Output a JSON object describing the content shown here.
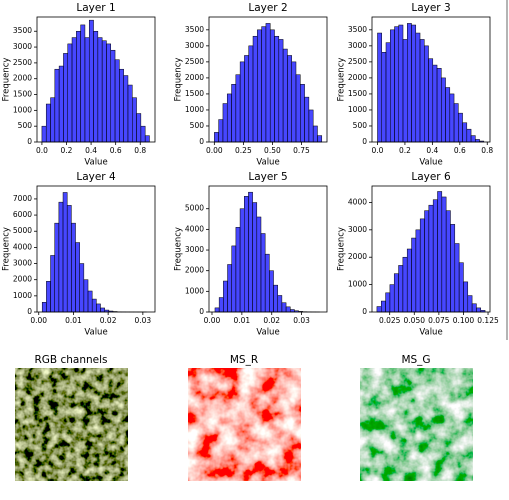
{
  "chart_data": [
    {
      "type": "histogram",
      "title": "Layer 1",
      "xlabel": "Value",
      "ylabel": "Frequency",
      "color": "#0000ff",
      "bins": [
        0,
        0.035,
        0.07,
        0.105,
        0.14,
        0.175,
        0.21,
        0.245,
        0.28,
        0.315,
        0.35,
        0.385,
        0.42,
        0.455,
        0.49,
        0.525,
        0.56,
        0.595,
        0.63,
        0.665,
        0.7,
        0.735,
        0.77,
        0.805,
        0.84,
        0.875
      ],
      "counts": [
        500,
        1200,
        1400,
        2300,
        2400,
        2800,
        3100,
        3300,
        3500,
        3700,
        3300,
        3850,
        3500,
        3300,
        3200,
        3100,
        2900,
        2600,
        2300,
        2100,
        1800,
        1400,
        900,
        500,
        200
      ],
      "xlim": [
        -0.04,
        0.92
      ],
      "ylim": [
        0,
        3950
      ],
      "xticks": [
        {
          "value": 0,
          "label": "0.0"
        },
        0.2,
        0.4,
        0.6,
        0.8
      ],
      "yticks": [
        0,
        500,
        1000,
        1500,
        2000,
        2500,
        3000,
        3500
      ]
    },
    {
      "type": "histogram",
      "title": "Layer 2",
      "xlabel": "Value",
      "ylabel": "Frequency",
      "color": "#0000ff",
      "bins": [
        0,
        0.037,
        0.074,
        0.111,
        0.148,
        0.185,
        0.222,
        0.259,
        0.296,
        0.333,
        0.37,
        0.407,
        0.444,
        0.481,
        0.518,
        0.555,
        0.592,
        0.629,
        0.666,
        0.703,
        0.74,
        0.777,
        0.814,
        0.851,
        0.888,
        0.925
      ],
      "counts": [
        300,
        700,
        1200,
        1500,
        1800,
        2100,
        2500,
        2700,
        3000,
        3300,
        3500,
        3600,
        3700,
        3500,
        3300,
        3200,
        2900,
        2700,
        2500,
        2100,
        1800,
        1400,
        1000,
        500,
        200
      ],
      "xlim": [
        -0.046,
        0.97
      ],
      "ylim": [
        0,
        3900
      ],
      "xticks": [
        {
          "value": 0,
          "label": "0.00"
        },
        0.25,
        {
          "value": 0.5,
          "label": "0.50"
        },
        0.75
      ],
      "yticks": [
        0,
        500,
        1000,
        1500,
        2000,
        2500,
        3000,
        3500
      ]
    },
    {
      "type": "histogram",
      "title": "Layer 3",
      "xlabel": "Value",
      "ylabel": "Frequency",
      "color": "#0000ff",
      "bins": [
        0,
        0.031,
        0.062,
        0.093,
        0.124,
        0.155,
        0.186,
        0.217,
        0.248,
        0.279,
        0.31,
        0.341,
        0.372,
        0.403,
        0.434,
        0.465,
        0.496,
        0.527,
        0.558,
        0.589,
        0.62,
        0.651,
        0.682,
        0.713,
        0.744,
        0.775
      ],
      "counts": [
        3400,
        2800,
        3100,
        3500,
        3600,
        3650,
        3200,
        3700,
        3650,
        3400,
        3200,
        3000,
        2600,
        2400,
        2300,
        2000,
        1700,
        1500,
        1200,
        900,
        600,
        400,
        200,
        80,
        30
      ],
      "xlim": [
        -0.04,
        0.82
      ],
      "ylim": [
        0,
        3900
      ],
      "xticks": [
        {
          "value": 0,
          "label": "0.0"
        },
        0.2,
        0.4,
        0.6,
        0.8
      ],
      "yticks": [
        0,
        500,
        1000,
        1500,
        2000,
        2500,
        3000,
        3500
      ]
    },
    {
      "type": "histogram",
      "title": "Layer 4",
      "xlabel": "Value",
      "ylabel": "Frequency",
      "color": "#0000ff",
      "bins": [
        0.001,
        0.0022,
        0.0034,
        0.0046,
        0.0058,
        0.007,
        0.0082,
        0.0094,
        0.0106,
        0.0118,
        0.013,
        0.0142,
        0.0154,
        0.0166,
        0.0178,
        0.019,
        0.0202,
        0.0214,
        0.0226,
        0.0238,
        0.025,
        0.0262,
        0.0274,
        0.0286,
        0.0298,
        0.031
      ],
      "counts": [
        600,
        1900,
        3500,
        5500,
        6800,
        7400,
        6600,
        5500,
        4300,
        3000,
        2000,
        1300,
        800,
        500,
        250,
        120,
        60,
        30,
        15,
        8,
        4,
        2,
        1,
        1,
        1
      ],
      "xlim": [
        -0.0005,
        0.0335
      ],
      "ylim": [
        0,
        7800
      ],
      "xticks": [
        {
          "value": 0,
          "label": "0.00"
        },
        0.01,
        0.02,
        0.03
      ],
      "yticks": [
        0,
        1000,
        2000,
        3000,
        4000,
        5000,
        6000,
        7000
      ]
    },
    {
      "type": "histogram",
      "title": "Layer 5",
      "xlabel": "Value",
      "ylabel": "Frequency",
      "color": "#0000ff",
      "bins": [
        0.001,
        0.0024,
        0.0038,
        0.0052,
        0.0066,
        0.008,
        0.0094,
        0.0108,
        0.0122,
        0.0136,
        0.015,
        0.0164,
        0.0178,
        0.0192,
        0.0206,
        0.022,
        0.0234,
        0.0248,
        0.0262,
        0.0276,
        0.029,
        0.0304,
        0.0318,
        0.0332,
        0.0346,
        0.036
      ],
      "counts": [
        200,
        700,
        1500,
        2300,
        3200,
        4100,
        5000,
        5600,
        5800,
        5300,
        4600,
        3800,
        2800,
        2000,
        1300,
        800,
        450,
        250,
        120,
        60,
        30,
        15,
        8,
        4,
        2
      ],
      "xlim": [
        -0.001,
        0.0385
      ],
      "ylim": [
        0,
        6100
      ],
      "xticks": [
        {
          "value": 0,
          "label": "0.00"
        },
        0.01,
        0.02,
        0.03
      ],
      "yticks": [
        0,
        1000,
        2000,
        3000,
        4000,
        5000
      ]
    },
    {
      "type": "histogram",
      "title": "Layer 6",
      "xlabel": "Value",
      "ylabel": "Frequency",
      "color": "#0000ff",
      "bins": [
        0.012,
        0.0164,
        0.0208,
        0.0252,
        0.0296,
        0.034,
        0.0384,
        0.0428,
        0.0472,
        0.0516,
        0.056,
        0.0604,
        0.0648,
        0.0692,
        0.0736,
        0.078,
        0.0824,
        0.0868,
        0.0912,
        0.0956,
        0.1,
        0.1044,
        0.1088,
        0.1132,
        0.1176,
        0.122
      ],
      "counts": [
        200,
        400,
        700,
        1000,
        1400,
        1700,
        2000,
        2300,
        2700,
        3000,
        3400,
        3700,
        3900,
        4100,
        4400,
        4200,
        3700,
        3200,
        2500,
        1800,
        1100,
        600,
        300,
        150,
        60
      ],
      "xlim": [
        0.007,
        0.127
      ],
      "ylim": [
        0,
        4600
      ],
      "xticks": [
        0.025,
        {
          "value": 0.05,
          "label": "0.050"
        },
        0.075,
        {
          "value": 0.1,
          "label": "0.100"
        },
        0.125
      ],
      "yticks": [
        0,
        1000,
        2000,
        3000,
        4000
      ]
    }
  ],
  "images": [
    {
      "title": "RGB channels"
    },
    {
      "title": "MS_R"
    },
    {
      "title": "MS_G"
    }
  ]
}
